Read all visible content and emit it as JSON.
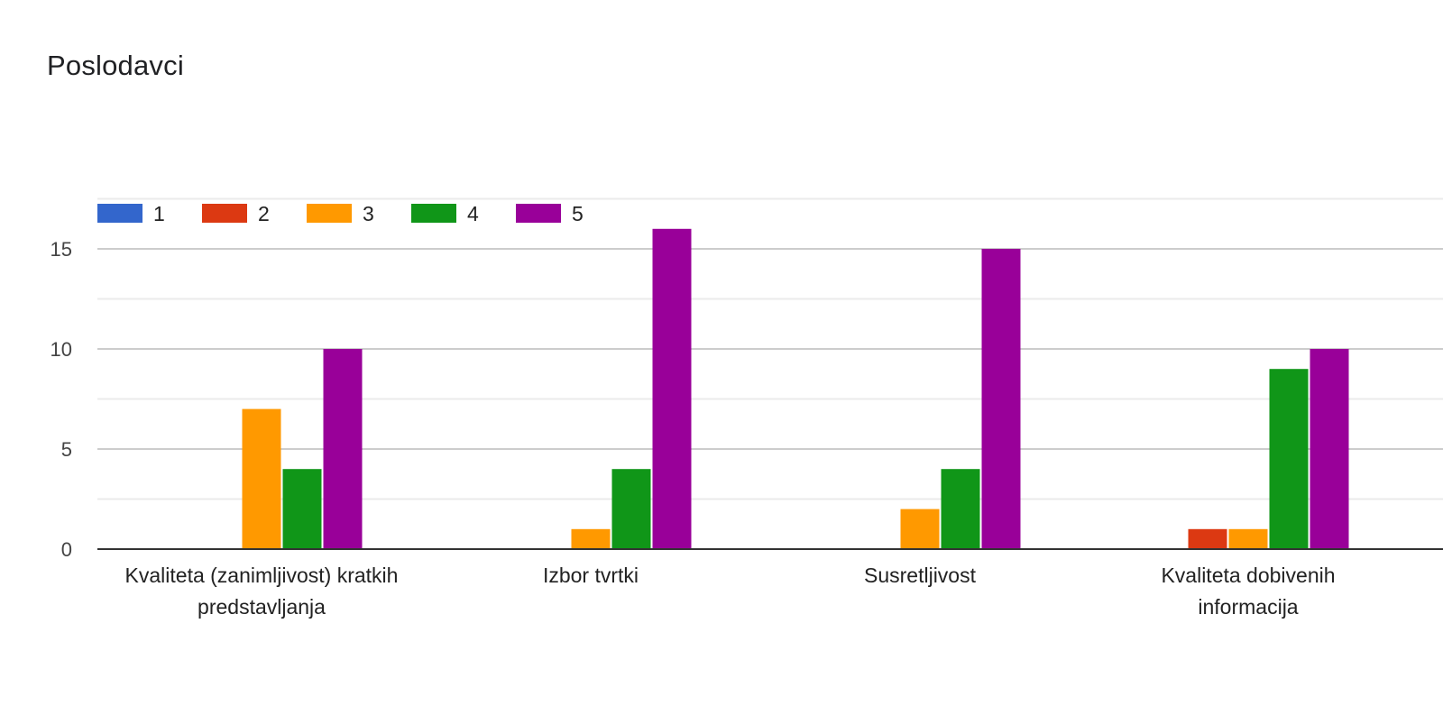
{
  "chart_data": {
    "type": "bar",
    "title": "Poslodavci",
    "categories": [
      [
        "Kvaliteta (zanimljivost) kratkih",
        "predstavljanja"
      ],
      [
        "Izbor tvrtki"
      ],
      [
        "Susretljivost"
      ],
      [
        "Kvaliteta dobivenih",
        "informacija"
      ]
    ],
    "series": [
      {
        "name": "1",
        "color": "#3366cc",
        "values": [
          0,
          0,
          0,
          0
        ]
      },
      {
        "name": "2",
        "color": "#dc3912",
        "values": [
          0,
          0,
          0,
          1
        ]
      },
      {
        "name": "3",
        "color": "#ff9900",
        "values": [
          7,
          1,
          2,
          1
        ]
      },
      {
        "name": "4",
        "color": "#109618",
        "values": [
          4,
          4,
          4,
          9
        ]
      },
      {
        "name": "5",
        "color": "#990099",
        "values": [
          10,
          16,
          15,
          10
        ]
      }
    ],
    "yticks": [
      "0",
      "5",
      "10",
      "15"
    ],
    "ylim": [
      0,
      17.5
    ],
    "grid": true,
    "legend_position": "top-left"
  }
}
